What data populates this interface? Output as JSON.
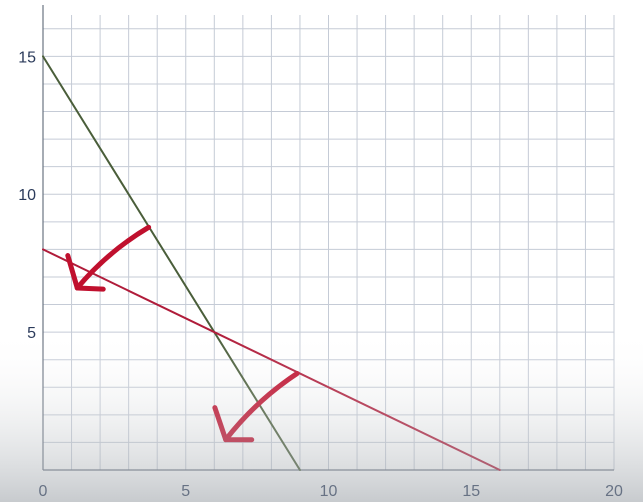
{
  "chart_data": {
    "type": "line",
    "title": "",
    "xlabel": "",
    "ylabel": "",
    "xlim": [
      0,
      20
    ],
    "ylim": [
      0,
      16.5
    ],
    "grid": true,
    "x_ticks": [
      0,
      5,
      10,
      15,
      20
    ],
    "y_ticks": [
      5,
      10,
      15
    ],
    "grid_step": 1,
    "series": [
      {
        "color": "#4a5e3a",
        "points": [
          [
            0,
            15
          ],
          [
            9,
            0
          ]
        ]
      },
      {
        "color": "#b01c3a",
        "points": [
          [
            0,
            8
          ],
          [
            16,
            0
          ]
        ]
      }
    ],
    "annotations": [
      {
        "type": "arrow",
        "color": "#c0102e",
        "from": [
          3.7,
          8.8
        ],
        "to": [
          1.2,
          6.6
        ]
      },
      {
        "type": "arrow",
        "color": "#c0102e",
        "from": [
          8.9,
          3.5
        ],
        "to": [
          6.4,
          1.1
        ]
      }
    ]
  }
}
